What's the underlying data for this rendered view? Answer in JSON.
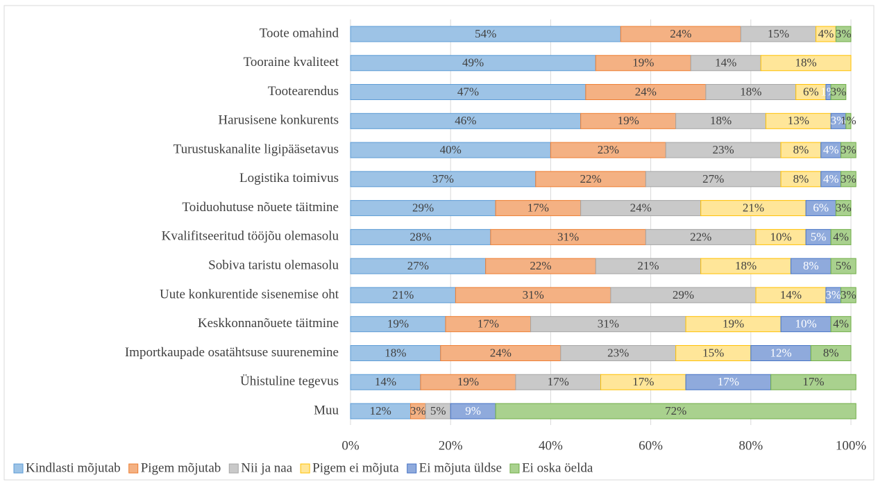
{
  "chart_data": {
    "type": "bar",
    "orientation": "horizontal",
    "stacked": true,
    "categories": [
      "Toote omahind",
      "Tooraine kvaliteet",
      "Tootearendus",
      "Harusisene konkurents ",
      "Turustuskanalite ligipääsetavus",
      "Logistika toimivus",
      "Toiduohutuse nõuete täitmine",
      "Kvalifitseeritud tööjõu olemasolu",
      "Sobiva taristu olemasolu",
      "Uute konkurentide sisenemise oht",
      "Keskkonnanõuete täitmine",
      "Importkaupade osatähtsuse suurenemine",
      "Ühistuline tegevus",
      "Muu"
    ],
    "series": [
      {
        "name": "Kindlasti mõjutab",
        "color": "#9dc3e6",
        "stroke": "#5b9bd5",
        "values": [
          54,
          49,
          47,
          46,
          40,
          37,
          29,
          28,
          27,
          21,
          19,
          18,
          14,
          12
        ],
        "value_labels": [
          "54%",
          "49%",
          "47%",
          "46%",
          "40%",
          "37%",
          "29%",
          "28%",
          "27%",
          "21%",
          "19%",
          "18%",
          "14%",
          "12%"
        ]
      },
      {
        "name": "Pigem mõjutab",
        "color": "#f4b183",
        "stroke": "#ed7d31",
        "values": [
          24,
          19,
          24,
          19,
          23,
          22,
          17,
          31,
          22,
          31,
          17,
          24,
          19,
          3
        ],
        "value_labels": [
          "24%",
          "19%",
          "24%",
          "19%",
          "23%",
          "22%",
          "17%",
          "31%",
          "22%",
          "31%",
          "17%",
          "24%",
          "19%",
          "3%"
        ]
      },
      {
        "name": "Nii ja naa",
        "color": "#c9c9c9",
        "stroke": "#a5a5a5",
        "values": [
          15,
          14,
          18,
          18,
          23,
          27,
          24,
          22,
          21,
          29,
          31,
          23,
          17,
          5
        ],
        "value_labels": [
          "15%",
          "14%",
          "18%",
          "18%",
          "23%",
          "27%",
          "24%",
          "22%",
          "21%",
          "29%",
          "31%",
          "23%",
          "17%",
          "5%"
        ]
      },
      {
        "name": "Pigem ei mõjuta",
        "color": "#ffe699",
        "stroke": "#ffc000",
        "values": [
          4,
          18,
          6,
          13,
          8,
          8,
          21,
          10,
          18,
          14,
          19,
          15,
          17,
          null
        ],
        "value_labels": [
          "4%",
          "18%",
          "6%",
          "13%",
          "8%",
          "8%",
          "21%",
          "10%",
          "18%",
          "14%",
          "19%",
          "15%",
          "17%",
          null
        ]
      },
      {
        "name": "Ei mõjuta üldse",
        "color": "#8faadc",
        "stroke": "#4472c4",
        "values": [
          null,
          null,
          1,
          3,
          4,
          4,
          6,
          5,
          8,
          3,
          10,
          12,
          17,
          9
        ],
        "value_labels": [
          null,
          null,
          "1%",
          "3%",
          "4%",
          "4%",
          "6%",
          "5%",
          "8%",
          "3%",
          "10%",
          "12%",
          "17%",
          "9%"
        ]
      },
      {
        "name": "Ei oska öelda",
        "color": "#a9d18e",
        "stroke": "#70ad47",
        "values": [
          3,
          null,
          3,
          1,
          3,
          3,
          3,
          4,
          5,
          3,
          4,
          8,
          17,
          72
        ],
        "value_labels": [
          "3%",
          null,
          "3%",
          "1%",
          "3%",
          "3%",
          "3%",
          "4%",
          "5%",
          "3%",
          "4%",
          "8%",
          "17%",
          "72%"
        ]
      }
    ],
    "xlim": [
      0,
      100
    ],
    "xticks": [
      {
        "value": 0,
        "label": "0%"
      },
      {
        "value": 20,
        "label": "20%"
      },
      {
        "value": 40,
        "label": "40%"
      },
      {
        "value": 60,
        "label": "60%"
      },
      {
        "value": 80,
        "label": "80%"
      },
      {
        "value": 100,
        "label": "100%"
      }
    ],
    "grid": true,
    "legend": "bottom"
  }
}
